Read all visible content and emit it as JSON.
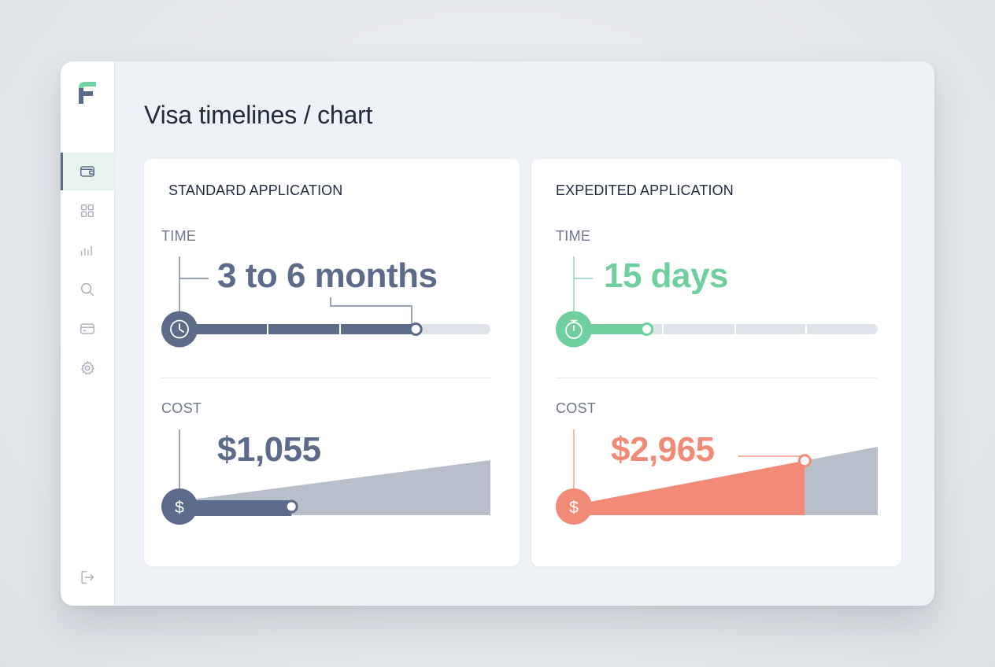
{
  "page": {
    "title": "Visa timelines / chart"
  },
  "colors": {
    "slate": "#5c6b89",
    "green": "#6fcf9e",
    "coral": "#f28a78",
    "track": "#dfe3ea",
    "gray_area": "#b8bfca",
    "logo_green": "#6fd4a4",
    "logo_slate": "#5c6b89"
  },
  "sidebar": {
    "items": [
      {
        "icon": "wallet-icon",
        "active": true
      },
      {
        "icon": "grid-icon",
        "active": false
      },
      {
        "icon": "bar-chart-icon",
        "active": false
      },
      {
        "icon": "search-icon",
        "active": false
      },
      {
        "icon": "credit-card-icon",
        "active": false
      },
      {
        "icon": "gear-icon",
        "active": false
      }
    ],
    "footer_icon": "logout-icon"
  },
  "cards": [
    {
      "title": "STANDARD APPLICATION",
      "time_label": "TIME",
      "time_value": "3 to 6 months",
      "time_icon": "clock-icon",
      "time_progress": 0.76,
      "cost_label": "COST",
      "cost_value": "$1,055",
      "cost_icon": "dollar-icon",
      "cost_progress": 0.36,
      "accent": "#5c6b89"
    },
    {
      "title": "EXPEDITED APPLICATION",
      "time_label": "TIME",
      "time_value": "15 days",
      "time_icon": "stopwatch-icon",
      "time_progress": 0.24,
      "cost_label": "COST",
      "cost_value": "$2,965",
      "cost_icon": "dollar-icon",
      "cost_progress": 0.76,
      "accent": "#f28a78"
    }
  ]
}
